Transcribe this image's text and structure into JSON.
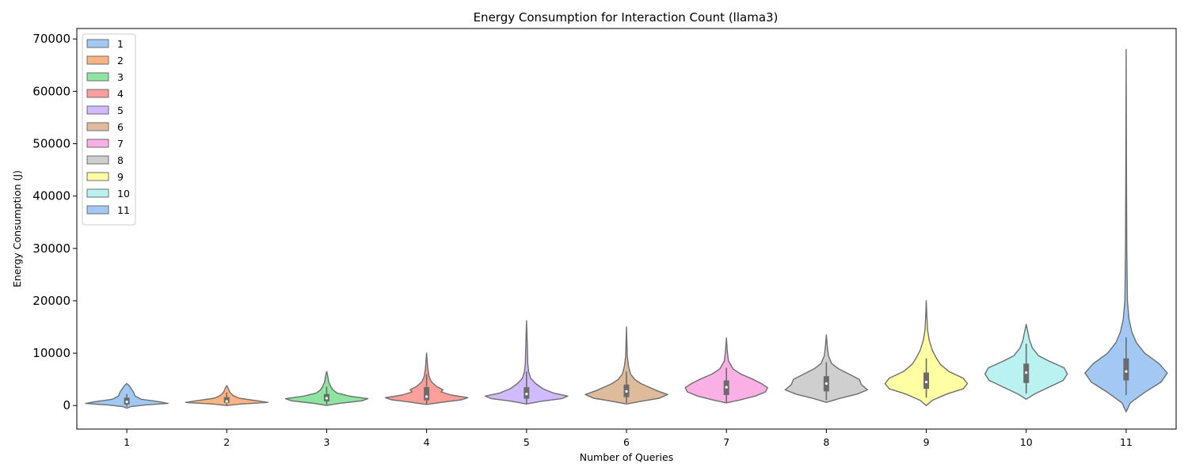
{
  "chart_data": {
    "type": "violin",
    "title": "Energy Consumption for Interaction Count (llama3)",
    "xlabel": "Number of Queries",
    "ylabel": "Energy Consumption (J)",
    "ylim": [
      -4500,
      72000
    ],
    "yticks": [
      0,
      10000,
      20000,
      30000,
      40000,
      50000,
      60000,
      70000
    ],
    "categories": [
      "1",
      "2",
      "3",
      "4",
      "5",
      "6",
      "7",
      "8",
      "9",
      "10",
      "11"
    ],
    "legend": {
      "placement": "upper-left",
      "entries": [
        "1",
        "2",
        "3",
        "4",
        "5",
        "6",
        "7",
        "8",
        "9",
        "10",
        "11"
      ]
    },
    "colors": [
      "#a1c9f4",
      "#ffb482",
      "#8de5a1",
      "#ff9f9b",
      "#d0bbff",
      "#debb9b",
      "#fab0e4",
      "#cfcfcf",
      "#fffea3",
      "#b9f2f0",
      "#a1c9f4"
    ],
    "series": [
      {
        "name": "1",
        "min": -500,
        "max": 4200,
        "q1": 200,
        "median": 700,
        "q3": 1500,
        "whisker_low": -200,
        "whisker_high": 2200,
        "profile": [
          [
            -500,
            0
          ],
          [
            -200,
            0.1
          ],
          [
            100,
            0.45
          ],
          [
            400,
            1.0
          ],
          [
            700,
            0.8
          ],
          [
            1200,
            0.35
          ],
          [
            1800,
            0.2
          ],
          [
            2500,
            0.17
          ],
          [
            3300,
            0.1
          ],
          [
            3800,
            0.06
          ],
          [
            4200,
            0
          ]
        ]
      },
      {
        "name": "2",
        "min": 0,
        "max": 3800,
        "q1": 500,
        "median": 800,
        "q3": 1600,
        "whisker_low": 100,
        "whisker_high": 2500,
        "profile": [
          [
            0,
            0
          ],
          [
            300,
            0.35
          ],
          [
            600,
            1.0
          ],
          [
            900,
            0.75
          ],
          [
            1400,
            0.3
          ],
          [
            1900,
            0.16
          ],
          [
            2500,
            0.08
          ],
          [
            3000,
            0.05
          ],
          [
            3400,
            0.03
          ],
          [
            3800,
            0
          ]
        ]
      },
      {
        "name": "3",
        "min": 0,
        "max": 6500,
        "q1": 800,
        "median": 1400,
        "q3": 2200,
        "whisker_low": 200,
        "whisker_high": 3600,
        "profile": [
          [
            0,
            0
          ],
          [
            400,
            0.3
          ],
          [
            900,
            0.85
          ],
          [
            1300,
            1.0
          ],
          [
            1800,
            0.55
          ],
          [
            2400,
            0.25
          ],
          [
            3000,
            0.15
          ],
          [
            3600,
            0.1
          ],
          [
            4500,
            0.05
          ],
          [
            5500,
            0.03
          ],
          [
            6500,
            0
          ]
        ]
      },
      {
        "name": "4",
        "min": 200,
        "max": 10000,
        "q1": 1000,
        "median": 1700,
        "q3": 3500,
        "whisker_low": 300,
        "whisker_high": 6000,
        "profile": [
          [
            200,
            0
          ],
          [
            600,
            0.35
          ],
          [
            1100,
            0.85
          ],
          [
            1500,
            1.0
          ],
          [
            2000,
            0.6
          ],
          [
            2600,
            0.35
          ],
          [
            3000,
            0.4
          ],
          [
            3600,
            0.25
          ],
          [
            4500,
            0.12
          ],
          [
            5500,
            0.06
          ],
          [
            7000,
            0.03
          ],
          [
            10000,
            0
          ]
        ]
      },
      {
        "name": "5",
        "min": 300,
        "max": 16200,
        "q1": 1300,
        "median": 2200,
        "q3": 3500,
        "whisker_low": 400,
        "whisker_high": 6500,
        "profile": [
          [
            300,
            0
          ],
          [
            800,
            0.35
          ],
          [
            1300,
            0.85
          ],
          [
            1800,
            1.0
          ],
          [
            2400,
            0.65
          ],
          [
            3200,
            0.4
          ],
          [
            4200,
            0.22
          ],
          [
            5200,
            0.1
          ],
          [
            6500,
            0.05
          ],
          [
            8000,
            0.03
          ],
          [
            11000,
            0.02
          ],
          [
            16200,
            0
          ]
        ]
      },
      {
        "name": "6",
        "min": 300,
        "max": 15000,
        "q1": 1600,
        "median": 2700,
        "q3": 4000,
        "whisker_low": 500,
        "whisker_high": 6500,
        "profile": [
          [
            300,
            0
          ],
          [
            800,
            0.35
          ],
          [
            1400,
            0.8
          ],
          [
            2100,
            1.0
          ],
          [
            2800,
            0.75
          ],
          [
            3500,
            0.55
          ],
          [
            4200,
            0.35
          ],
          [
            5000,
            0.2
          ],
          [
            6000,
            0.1
          ],
          [
            7500,
            0.05
          ],
          [
            9500,
            0.02
          ],
          [
            15000,
            0
          ]
        ]
      },
      {
        "name": "7",
        "min": 500,
        "max": 12900,
        "q1": 2000,
        "median": 3500,
        "q3": 4800,
        "whisker_low": 600,
        "whisker_high": 7200,
        "profile": [
          [
            500,
            0
          ],
          [
            1000,
            0.3
          ],
          [
            1800,
            0.7
          ],
          [
            2600,
            0.95
          ],
          [
            3400,
            1.0
          ],
          [
            4200,
            0.85
          ],
          [
            5000,
            0.65
          ],
          [
            6000,
            0.35
          ],
          [
            7000,
            0.16
          ],
          [
            8500,
            0.05
          ],
          [
            10500,
            0.02
          ],
          [
            12900,
            0
          ]
        ]
      },
      {
        "name": "8",
        "min": 600,
        "max": 13500,
        "q1": 2700,
        "median": 4200,
        "q3": 5600,
        "whisker_low": 1000,
        "whisker_high": 8300,
        "profile": [
          [
            600,
            0
          ],
          [
            1300,
            0.3
          ],
          [
            2200,
            0.75
          ],
          [
            3000,
            1.0
          ],
          [
            4000,
            0.85
          ],
          [
            5000,
            0.8
          ],
          [
            6000,
            0.55
          ],
          [
            7000,
            0.3
          ],
          [
            8000,
            0.13
          ],
          [
            9500,
            0.05
          ],
          [
            11500,
            0.02
          ],
          [
            13500,
            0
          ]
        ]
      },
      {
        "name": "9",
        "min": 0,
        "max": 20000,
        "q1": 3200,
        "median": 4500,
        "q3": 6300,
        "whisker_low": 1500,
        "whisker_high": 9000,
        "profile": [
          [
            0,
            0
          ],
          [
            1000,
            0.15
          ],
          [
            2200,
            0.5
          ],
          [
            3200,
            0.9
          ],
          [
            4200,
            1.0
          ],
          [
            5200,
            0.9
          ],
          [
            6500,
            0.55
          ],
          [
            7800,
            0.35
          ],
          [
            9000,
            0.25
          ],
          [
            10500,
            0.15
          ],
          [
            12500,
            0.07
          ],
          [
            14500,
            0.03
          ],
          [
            17000,
            0.015
          ],
          [
            20000,
            0
          ]
        ]
      },
      {
        "name": "10",
        "min": 1200,
        "max": 15500,
        "q1": 4300,
        "median": 6300,
        "q3": 8000,
        "whisker_low": 2300,
        "whisker_high": 11800,
        "profile": [
          [
            1200,
            0
          ],
          [
            2200,
            0.2
          ],
          [
            3500,
            0.55
          ],
          [
            4800,
            0.9
          ],
          [
            6000,
            1.0
          ],
          [
            7200,
            0.92
          ],
          [
            8500,
            0.55
          ],
          [
            9500,
            0.3
          ],
          [
            11000,
            0.15
          ],
          [
            12500,
            0.08
          ],
          [
            14000,
            0.04
          ],
          [
            15500,
            0
          ]
        ]
      },
      {
        "name": "11",
        "min": -1200,
        "max": 68000,
        "q1": 4800,
        "median": 6500,
        "q3": 9000,
        "whisker_low": 2000,
        "whisker_high": 13000,
        "profile": [
          [
            -1200,
            0
          ],
          [
            500,
            0.1
          ],
          [
            2500,
            0.45
          ],
          [
            4500,
            0.85
          ],
          [
            6200,
            1.0
          ],
          [
            8000,
            0.8
          ],
          [
            10000,
            0.45
          ],
          [
            12000,
            0.25
          ],
          [
            14000,
            0.14
          ],
          [
            16500,
            0.07
          ],
          [
            20000,
            0.03
          ],
          [
            30000,
            0.015
          ],
          [
            45000,
            0.008
          ],
          [
            68000,
            0
          ]
        ]
      }
    ]
  }
}
